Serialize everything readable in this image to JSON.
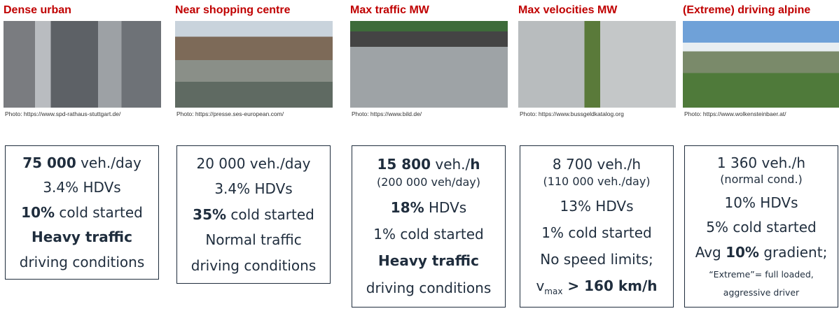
{
  "columns": [
    {
      "title": "Dense urban",
      "credit": "Photo: https://www.spd-rathaus-stuttgart.de/",
      "lines": [
        {
          "segments": [
            {
              "text": "75 000",
              "bold": true
            },
            {
              "text": " veh./day"
            }
          ]
        },
        {
          "segments": [
            {
              "text": "3.4% HDVs"
            }
          ]
        },
        {
          "segments": [
            {
              "text": "10%",
              "bold": true
            },
            {
              "text": " cold started"
            }
          ]
        },
        {
          "segments": [
            {
              "text": "Heavy traffic",
              "bold": true
            }
          ]
        },
        {
          "segments": [
            {
              "text": "driving conditions"
            }
          ]
        }
      ]
    },
    {
      "title": "Near shopping centre",
      "credit": "Photo: https://presse.ses-european.com/",
      "lines": [
        {
          "segments": [
            {
              "text": "20 000 veh./day"
            }
          ]
        },
        {
          "segments": [
            {
              "text": "3.4% HDVs"
            }
          ]
        },
        {
          "segments": [
            {
              "text": "35%",
              "bold": true
            },
            {
              "text": " cold started"
            }
          ]
        },
        {
          "segments": [
            {
              "text": "Normal traffic"
            }
          ]
        },
        {
          "segments": [
            {
              "text": "driving conditions"
            }
          ]
        }
      ]
    },
    {
      "title": "Max traffic MW",
      "credit": "Photo: https://www.bild.de/",
      "lines": [
        {
          "segments": [
            {
              "text": "15 800",
              "bold": true
            },
            {
              "text": " veh./"
            },
            {
              "text": "h",
              "bold": true
            }
          ]
        },
        {
          "small": true,
          "segments": [
            {
              "text": "(200 000 veh/day)"
            }
          ]
        },
        {
          "segments": [
            {
              "text": "18%",
              "bold": true
            },
            {
              "text": " HDVs"
            }
          ]
        },
        {
          "segments": [
            {
              "text": "1% cold started"
            }
          ]
        },
        {
          "segments": [
            {
              "text": "Heavy traffic",
              "bold": true
            }
          ]
        },
        {
          "segments": [
            {
              "text": "driving conditions"
            }
          ]
        }
      ]
    },
    {
      "title": "Max velocities MW",
      "credit": "Photo: https://www.bussgeldkatalog.org",
      "lines": [
        {
          "segments": [
            {
              "text": "8 700 veh./h"
            }
          ]
        },
        {
          "small": true,
          "segments": [
            {
              "text": "(110 000 veh./day)"
            }
          ]
        },
        {
          "segments": [
            {
              "text": "13% HDVs"
            }
          ]
        },
        {
          "segments": [
            {
              "text": "1% cold started"
            }
          ]
        },
        {
          "segments": [
            {
              "text": "No speed limits;"
            }
          ]
        },
        {
          "segments": [
            {
              "text": "v"
            },
            {
              "text": "max",
              "sub": true
            },
            {
              "text": " > 160 km/h",
              "bold": true
            }
          ]
        }
      ]
    },
    {
      "title": "(Extreme) driving alpine",
      "credit": "Photo: https://www.wolkensteinbaer.at/",
      "lines": [
        {
          "segments": [
            {
              "text": "1 360 veh./h"
            }
          ]
        },
        {
          "small": true,
          "segments": [
            {
              "text": "(normal cond.)"
            }
          ]
        },
        {
          "segments": [
            {
              "text": "10% HDVs"
            }
          ]
        },
        {
          "segments": [
            {
              "text": "5% cold started"
            }
          ]
        },
        {
          "segments": [
            {
              "text": "Avg "
            },
            {
              "text": "10%",
              "bold": true
            },
            {
              "text": " gradient;"
            }
          ]
        },
        {
          "tiny": true,
          "segments": [
            {
              "text": "“Extreme”= full loaded,"
            }
          ]
        },
        {
          "tiny": true,
          "segments": [
            {
              "text": "aggressive driver"
            }
          ]
        }
      ]
    }
  ]
}
